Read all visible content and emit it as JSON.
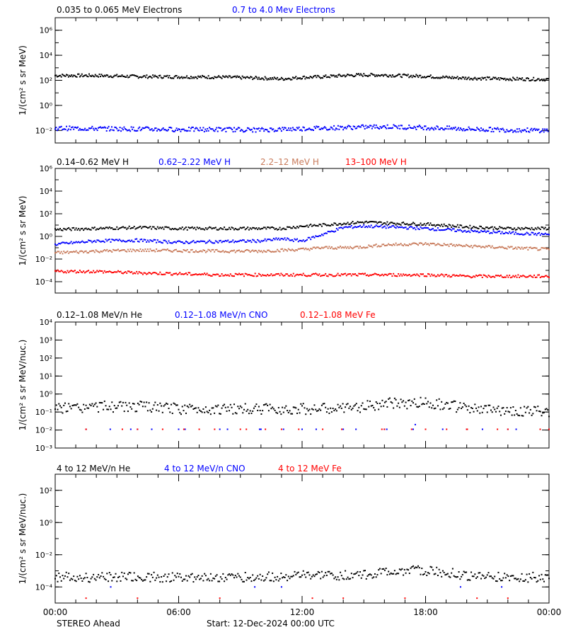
{
  "chart_data": [
    {
      "type": "scatter",
      "scale": "log",
      "ylim": [
        0.001,
        10000000
      ],
      "ylabel": "1/(cm² s sr MeV)",
      "yticks": [
        {
          "value": 0.01,
          "label": "10⁻²"
        },
        {
          "value": 1,
          "label": "10⁰"
        },
        {
          "value": 100,
          "label": "10²"
        },
        {
          "value": 10000,
          "label": "10⁴"
        },
        {
          "value": 1000000,
          "label": "10⁶"
        }
      ],
      "series": [
        {
          "name": "0.035 to 0.065 MeV Electrons",
          "color": "#000000",
          "x": [
            0,
            2,
            4,
            6,
            8,
            10,
            11,
            12,
            13,
            14,
            15,
            16,
            17,
            18,
            19,
            20,
            22,
            24
          ],
          "y": [
            240,
            240,
            200,
            190,
            180,
            150,
            130,
            170,
            190,
            240,
            270,
            260,
            230,
            210,
            170,
            150,
            130,
            120
          ]
        },
        {
          "name": "0.7 to 4.0 Mev Electrons",
          "color": "#0000ff",
          "x": [
            0,
            2,
            4,
            6,
            8,
            10,
            12,
            14,
            16,
            18,
            20,
            22,
            24
          ],
          "y": [
            0.015,
            0.014,
            0.013,
            0.012,
            0.012,
            0.011,
            0.014,
            0.017,
            0.02,
            0.017,
            0.013,
            0.011,
            0.01
          ]
        }
      ]
    },
    {
      "type": "scatter",
      "scale": "log",
      "ylim": [
        1e-05,
        1000000
      ],
      "ylabel": "1/(cm² s sr MeV)",
      "yticks": [
        {
          "value": 0.0001,
          "label": "10⁻⁴"
        },
        {
          "value": 0.01,
          "label": "10⁻²"
        },
        {
          "value": 1,
          "label": "10⁰"
        },
        {
          "value": 100,
          "label": "10²"
        },
        {
          "value": 10000,
          "label": "10⁴"
        },
        {
          "value": 1000000,
          "label": "10⁶"
        }
      ],
      "series": [
        {
          "name": "0.14–0.62 MeV H",
          "color": "#000000",
          "x": [
            0,
            2,
            4,
            6,
            8,
            10,
            11,
            12,
            13,
            14,
            15,
            16,
            18,
            20,
            22,
            24
          ],
          "y": [
            4,
            5,
            6,
            5,
            5,
            5,
            5,
            8,
            10,
            14,
            18,
            15,
            12,
            7,
            5,
            5
          ]
        },
        {
          "name": "0.62–2.22 MeV H",
          "color": "#0000ff",
          "x": [
            0,
            2,
            4,
            6,
            8,
            10,
            11,
            12,
            13,
            14,
            15,
            16,
            18,
            20,
            22,
            24
          ],
          "y": [
            0.2,
            0.4,
            0.45,
            0.3,
            0.35,
            0.4,
            0.6,
            0.4,
            1.5,
            6,
            8,
            7,
            5,
            3,
            2,
            1.5
          ]
        },
        {
          "name": "2.2–12 MeV H",
          "color": "#c87a5a",
          "x": [
            0,
            2,
            4,
            6,
            8,
            10,
            11,
            12,
            13,
            14,
            15,
            16,
            17,
            18,
            19,
            20,
            22,
            24
          ],
          "y": [
            0.035,
            0.05,
            0.06,
            0.055,
            0.05,
            0.05,
            0.06,
            0.07,
            0.1,
            0.1,
            0.12,
            0.18,
            0.2,
            0.22,
            0.18,
            0.14,
            0.1,
            0.07
          ]
        },
        {
          "name": "13–100 MeV H",
          "color": "#ff0000",
          "x": [
            0,
            2,
            4,
            6,
            8,
            10,
            12,
            14,
            16,
            18,
            20,
            22,
            24
          ],
          "y": [
            0.0008,
            0.0008,
            0.0006,
            0.0005,
            0.0004,
            0.0004,
            0.0004,
            0.0004,
            0.0004,
            0.0004,
            0.0003,
            0.0003,
            0.0003
          ]
        }
      ]
    },
    {
      "type": "scatter",
      "scale": "log",
      "ylim": [
        0.001,
        10000
      ],
      "ylabel": "1/(cm² s sr MeV/nuc.)",
      "yticks": [
        {
          "value": 0.001,
          "label": "10⁻³"
        },
        {
          "value": 0.01,
          "label": "10⁻²"
        },
        {
          "value": 0.1,
          "label": "10⁻¹"
        },
        {
          "value": 1,
          "label": "10⁰"
        },
        {
          "value": 10,
          "label": "10¹"
        },
        {
          "value": 100,
          "label": "10²"
        },
        {
          "value": 1000,
          "label": "10³"
        },
        {
          "value": 10000,
          "label": "10⁴"
        }
      ],
      "series": [
        {
          "name": "0.12–1.08 MeV/n He",
          "color": "#000000",
          "x": [
            0,
            2,
            4,
            6,
            8,
            10,
            12,
            14,
            15,
            16,
            17,
            18,
            19,
            20,
            22,
            24
          ],
          "y": [
            0.15,
            0.2,
            0.2,
            0.15,
            0.15,
            0.15,
            0.15,
            0.15,
            0.2,
            0.3,
            0.3,
            0.35,
            0.25,
            0.15,
            0.12,
            0.1
          ]
        },
        {
          "name": "0.12–1.08 MeV/n CNO",
          "color": "#0000ff",
          "x": [
            1.5,
            4,
            6,
            8,
            10,
            12,
            14,
            16,
            17.5,
            20,
            22,
            24
          ],
          "y": [
            0.011,
            0.011,
            0.011,
            0.011,
            0.011,
            0.011,
            0.011,
            0.011,
            0.02,
            0.011,
            0.011,
            0.011
          ]
        },
        {
          "name": "0.12–1.08 MeV Fe",
          "color": "#ff0000",
          "x": [
            1.5,
            4,
            7,
            9,
            11,
            13,
            16,
            18,
            20,
            22,
            24
          ],
          "y": [
            0.011,
            0.011,
            0.011,
            0.011,
            0.011,
            0.011,
            0.011,
            0.011,
            0.011,
            0.011,
            0.011
          ]
        }
      ]
    },
    {
      "type": "scatter",
      "scale": "log",
      "ylim": [
        1e-05,
        1000
      ],
      "ylabel": "1/(cm² s sr MeV/nuc.)",
      "yticks": [
        {
          "value": 0.0001,
          "label": "10⁻⁴"
        },
        {
          "value": 0.01,
          "label": "10⁻²"
        },
        {
          "value": 1,
          "label": "10⁰"
        },
        {
          "value": 100,
          "label": "10²"
        }
      ],
      "series": [
        {
          "name": "4 to 12 MeV/n He",
          "color": "#000000",
          "x": [
            0,
            2,
            4,
            6,
            8,
            10,
            12,
            14,
            15,
            16,
            17,
            18,
            19,
            20,
            22,
            24
          ],
          "y": [
            0.0004,
            0.0004,
            0.0004,
            0.0004,
            0.0004,
            0.0004,
            0.0005,
            0.0005,
            0.0006,
            0.0008,
            0.001,
            0.001,
            0.0008,
            0.0005,
            0.0004,
            0.0004
          ]
        },
        {
          "name": "4 to 12 MeV/n CNO",
          "color": "#0000ff",
          "x": [
            2.7,
            9.7,
            11,
            19.7,
            21.7
          ],
          "y": [
            0.0001,
            0.0001,
            0.0001,
            0.0001,
            0.0001
          ]
        },
        {
          "name": "4 to 12 MeV Fe",
          "color": "#ff0000",
          "x": [
            1.5,
            4,
            8,
            12.5,
            14,
            17,
            20.5,
            22
          ],
          "y": [
            2e-05,
            2e-05,
            2e-05,
            2e-05,
            2e-05,
            2e-05,
            2e-05,
            2e-05
          ]
        }
      ]
    }
  ],
  "xaxis": {
    "range": [
      0,
      24
    ],
    "ticks": [
      {
        "value": 0,
        "label": "00:00"
      },
      {
        "value": 6,
        "label": "06:00"
      },
      {
        "value": 12,
        "label": "12:00"
      },
      {
        "value": 18,
        "label": "18:00"
      },
      {
        "value": 24,
        "label": "00:00"
      }
    ]
  },
  "footer": {
    "spacecraft": "STEREO Ahead",
    "start": "Start: 12-Dec-2024 00:00 UTC"
  }
}
